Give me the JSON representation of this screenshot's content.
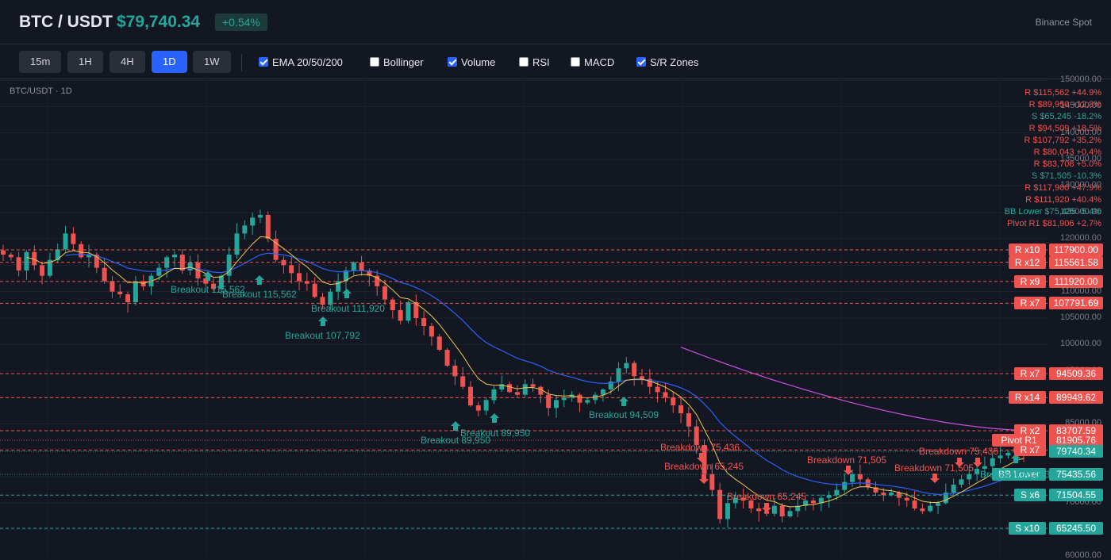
{
  "header": {
    "pair": "BTC / USDT",
    "price": "$79,740.34",
    "change": "+0.54%",
    "exchange": "Binance Spot"
  },
  "toolbar": {
    "timeframes": [
      "15m",
      "1H",
      "4H",
      "1D",
      "1W"
    ],
    "active_timeframe": "1D",
    "toggles": [
      {
        "label": "EMA 20/50/200",
        "checked": true
      },
      {
        "label": "Bollinger",
        "checked": false
      },
      {
        "label": "Volume",
        "checked": true
      },
      {
        "label": "RSI",
        "checked": false
      },
      {
        "label": "MACD",
        "checked": false
      },
      {
        "label": "S/R Zones",
        "checked": true
      }
    ]
  },
  "chart": {
    "label": "BTC/USDT · 1D",
    "y_axis_labels": [
      "150000.00",
      "145000.00",
      "140000.00",
      "135000.00",
      "130000.00",
      "125000.00",
      "120000.00",
      "115000.00",
      "110000.00",
      "105000.00",
      "100000.00",
      "95000.00",
      "90000.00",
      "85000.00",
      "80000.00",
      "75000.00",
      "70000.00",
      "65000.00",
      "60000.00"
    ],
    "sr_list": [
      {
        "text": "R $115,562 +44.9%",
        "kind": "r"
      },
      {
        "text": "R $89,950 +12.8%",
        "kind": "r"
      },
      {
        "text": "S $65,245 -18.2%",
        "kind": "s"
      },
      {
        "text": "R $94,509 +18.5%",
        "kind": "r"
      },
      {
        "text": "R $107,792 +35.2%",
        "kind": "r"
      },
      {
        "text": "R $80,043 +0.4%",
        "kind": "r"
      },
      {
        "text": "R $83,708 +5.0%",
        "kind": "r"
      },
      {
        "text": "S $71,505 -10.3%",
        "kind": "s"
      },
      {
        "text": "R $117,900 +47.9%",
        "kind": "r"
      },
      {
        "text": "R $111,920 +40.4%",
        "kind": "r"
      },
      {
        "text": "BB Lower $75,435 -5.4%",
        "kind": "s"
      },
      {
        "text": "Pivot R1 $81,906 +2.7%",
        "kind": "r"
      }
    ],
    "levels": [
      {
        "tag": "R x10",
        "value": "117900.00",
        "price": 117900,
        "kind": "r"
      },
      {
        "tag": "R x12",
        "value": "115561.58",
        "price": 115561.58,
        "kind": "r"
      },
      {
        "tag": "R x9",
        "value": "111920.00",
        "price": 111920,
        "kind": "r"
      },
      {
        "tag": "R x7",
        "value": "107791.69",
        "price": 107791.69,
        "kind": "r"
      },
      {
        "tag": "R x7",
        "value": "94509.36",
        "price": 94509.36,
        "kind": "r"
      },
      {
        "tag": "R x14",
        "value": "89949.62",
        "price": 89949.62,
        "kind": "r"
      },
      {
        "tag": "R x2",
        "value": "83707.59",
        "price": 83707.59,
        "kind": "r"
      },
      {
        "tag": "Pivot R1",
        "value": "81905.76",
        "price": 81905.76,
        "kind": "r"
      },
      {
        "tag": "R x7",
        "value": "80042.83",
        "price": 80042.83,
        "kind": "r"
      },
      {
        "tag": "",
        "value": "79740.34",
        "price": 79740.34,
        "kind": "s"
      },
      {
        "tag": "BB Lower",
        "value": "75435.56",
        "price": 75435.56,
        "kind": "s"
      },
      {
        "tag": "S x6",
        "value": "71504.55",
        "price": 71504.55,
        "kind": "s"
      },
      {
        "tag": "S x10",
        "value": "65245.50",
        "price": 65245.5,
        "kind": "s"
      }
    ],
    "annotations": [
      {
        "text": "Breakout 115,562",
        "kind": "g"
      },
      {
        "text": "Breakout 115,562",
        "kind": "g"
      },
      {
        "text": "Breakout 111,920",
        "kind": "g"
      },
      {
        "text": "Breakout 107,792",
        "kind": "g"
      },
      {
        "text": "Breakout 89,950",
        "kind": "g"
      },
      {
        "text": "Breakout 89,950",
        "kind": "g"
      },
      {
        "text": "Breakout 94,509",
        "kind": "g"
      },
      {
        "text": "Breakdown 75,436",
        "kind": "rd"
      },
      {
        "text": "Breakdown 65,245",
        "kind": "rd"
      },
      {
        "text": "Breakdown 65,245",
        "kind": "rd"
      },
      {
        "text": "Breakdown 71,505",
        "kind": "rd"
      },
      {
        "text": "Breakdown 71,505",
        "kind": "rd"
      },
      {
        "text": "Breakdown 75,436",
        "kind": "rd"
      },
      {
        "text": "Breakout 80,043",
        "kind": "g"
      }
    ],
    "colors": {
      "up": "#26a69a",
      "down": "#ef5350",
      "ema20": "#f2c94c",
      "ema50": "#2962ff",
      "ema200": "#c84fe0",
      "grid": "#1e222d"
    }
  },
  "chart_data": {
    "type": "candlestick",
    "ylim": [
      60000,
      150000
    ],
    "close_path": [
      117000,
      116500,
      114000,
      117500,
      115000,
      113000,
      116000,
      118000,
      121000,
      119000,
      116500,
      117000,
      114500,
      112000,
      110000,
      109500,
      108000,
      112000,
      111000,
      113000,
      114500,
      116500,
      117000,
      114000,
      115500,
      112500,
      111500,
      110500,
      113000,
      117000,
      121000,
      122500,
      124000,
      124500,
      120000,
      116000,
      115000,
      113500,
      112000,
      111500,
      109000,
      107500,
      110000,
      112000,
      114000,
      115500,
      114000,
      113000,
      111000,
      108500,
      106500,
      104500,
      108000,
      105000,
      103500,
      101500,
      99000,
      96000,
      94000,
      92000,
      88500,
      87500,
      89500,
      91500,
      92500,
      91000,
      90500,
      92500,
      92000,
      90500,
      88000,
      89500,
      90000,
      90500,
      89000,
      89500,
      90500,
      91500,
      93000,
      95500,
      96500,
      94000,
      93500,
      92000,
      91000,
      90000,
      88500,
      87000,
      84500,
      81000,
      75500,
      72500,
      67000,
      70000,
      71000,
      70500,
      69000,
      68500,
      68000,
      69500,
      67500,
      68500,
      69500,
      70500,
      70000,
      71000,
      71500,
      72500,
      74000,
      75500,
      74500,
      73000,
      72000,
      71500,
      72000,
      71000,
      70500,
      69000,
      68500,
      69500,
      70000,
      72000,
      73500,
      74500,
      75500,
      76500,
      77000,
      78500,
      79000,
      79500,
      80500,
      79740
    ]
  }
}
